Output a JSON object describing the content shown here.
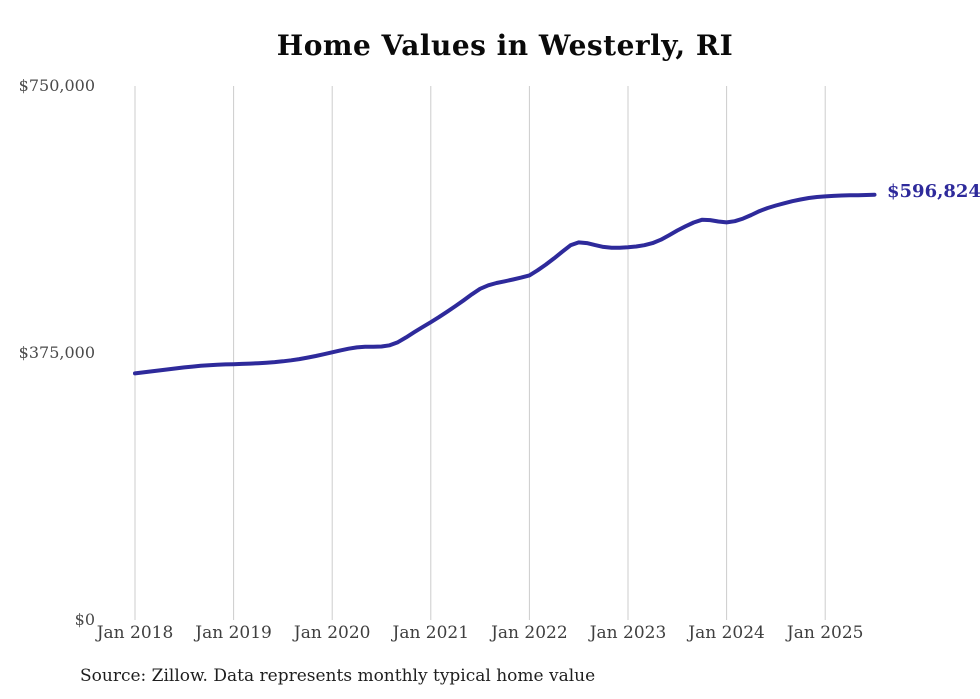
{
  "chart": {
    "title": "Home Values in Westerly, RI",
    "end_label": "$596,824",
    "source": "Source: Zillow. Data represents monthly typical home value"
  },
  "chart_data": {
    "type": "line",
    "title": "Home Values in Westerly, RI",
    "xlabel": "",
    "ylabel": "",
    "ylim": [
      0,
      750000
    ],
    "grid": "vertical-only",
    "legend": "none",
    "line_color": "#2e2a9b",
    "gridline_color": "#cccccc",
    "y_ticks": [
      {
        "label": "$0",
        "value": 0
      },
      {
        "label": "$375,000",
        "value": 375000
      },
      {
        "label": "$750,000",
        "value": 750000
      }
    ],
    "x_tick_labels": [
      "Jan 2018",
      "Jan 2019",
      "Jan 2020",
      "Jan 2021",
      "Jan 2022",
      "Jan 2023",
      "Jan 2024",
      "Jan 2025"
    ],
    "end_annotation": {
      "label": "$596,824",
      "value": 596824,
      "x": "2025-07"
    },
    "x": [
      "2018-01",
      "2018-02",
      "2018-03",
      "2018-04",
      "2018-05",
      "2018-06",
      "2018-07",
      "2018-08",
      "2018-09",
      "2018-10",
      "2018-11",
      "2018-12",
      "2019-01",
      "2019-02",
      "2019-03",
      "2019-04",
      "2019-05",
      "2019-06",
      "2019-07",
      "2019-08",
      "2019-09",
      "2019-10",
      "2019-11",
      "2019-12",
      "2020-01",
      "2020-02",
      "2020-03",
      "2020-04",
      "2020-05",
      "2020-06",
      "2020-07",
      "2020-08",
      "2020-09",
      "2020-10",
      "2020-11",
      "2020-12",
      "2021-01",
      "2021-02",
      "2021-03",
      "2021-04",
      "2021-05",
      "2021-06",
      "2021-07",
      "2021-08",
      "2021-09",
      "2021-10",
      "2021-11",
      "2021-12",
      "2022-01",
      "2022-02",
      "2022-03",
      "2022-04",
      "2022-05",
      "2022-06",
      "2022-07",
      "2022-08",
      "2022-09",
      "2022-10",
      "2022-11",
      "2022-12",
      "2023-01",
      "2023-02",
      "2023-03",
      "2023-04",
      "2023-05",
      "2023-06",
      "2023-07",
      "2023-08",
      "2023-09",
      "2023-10",
      "2023-11",
      "2023-12",
      "2024-01",
      "2024-02",
      "2024-03",
      "2024-04",
      "2024-05",
      "2024-06",
      "2024-07",
      "2024-08",
      "2024-09",
      "2024-10",
      "2024-11",
      "2024-12",
      "2025-01",
      "2025-02",
      "2025-03",
      "2025-04",
      "2025-05",
      "2025-06",
      "2025-07"
    ],
    "values": [
      346000,
      347400,
      348800,
      350300,
      351700,
      353100,
      354400,
      355600,
      356700,
      357500,
      358100,
      358600,
      359000,
      359400,
      359800,
      360300,
      361000,
      361900,
      363000,
      364400,
      366100,
      368200,
      370500,
      373000,
      375700,
      378300,
      380700,
      382500,
      383300,
      383400,
      383700,
      385500,
      389800,
      396500,
      404000,
      411000,
      417800,
      425000,
      432600,
      440400,
      448600,
      457000,
      464800,
      469700,
      472900,
      475300,
      477800,
      480500,
      483600,
      490700,
      498700,
      507400,
      516800,
      525800,
      529900,
      528900,
      526100,
      523500,
      522200,
      522400,
      523000,
      524100,
      525900,
      528800,
      533600,
      539900,
      546500,
      552500,
      557700,
      561600,
      561200,
      559200,
      557900,
      559600,
      563200,
      568300,
      573800,
      578100,
      581600,
      584700,
      587600,
      590100,
      592100,
      593500,
      594400,
      595100,
      595600,
      595900,
      596100,
      596400,
      596824
    ]
  }
}
